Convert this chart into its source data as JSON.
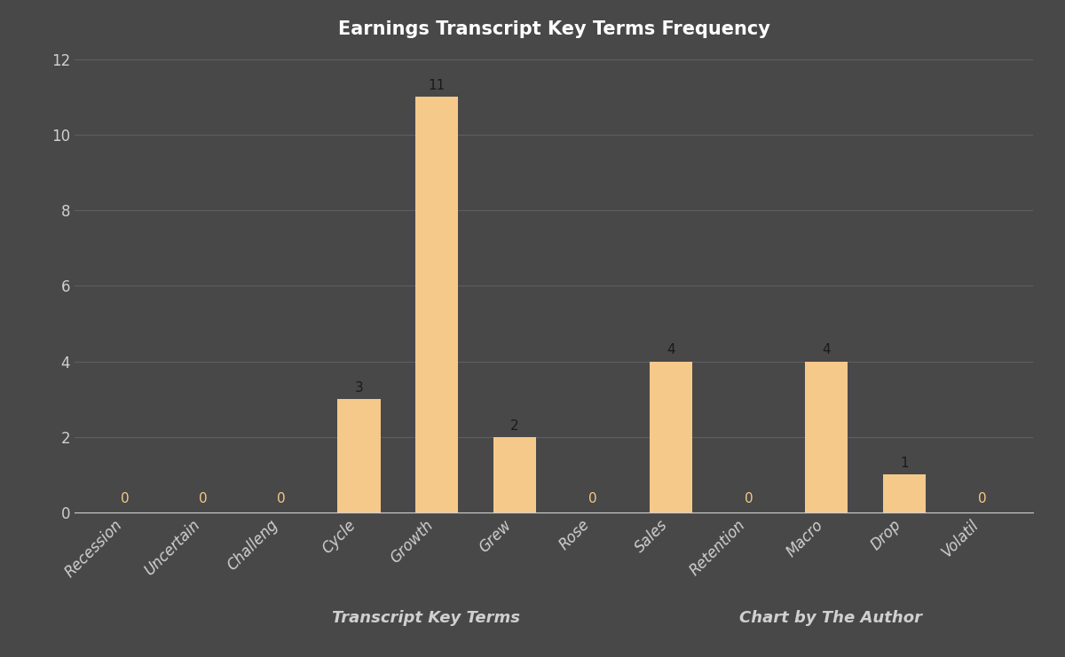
{
  "title": "Earnings Transcript Key Terms Frequency",
  "categories": [
    "Recession",
    "Uncertain",
    "Challeng",
    "Cycle",
    "Growth",
    "Grew",
    "Rose",
    "Sales",
    "Retention",
    "Macro",
    "Drop",
    "Volatil"
  ],
  "values": [
    0,
    0,
    0,
    3,
    11,
    2,
    0,
    4,
    0,
    4,
    1,
    0
  ],
  "bar_color": "#f5c98a",
  "label_color_zero": "#f5c98a",
  "label_color_nonzero": "#1a1a1a",
  "background_color": "#484848",
  "text_color": "#d0d0d0",
  "title_color": "#ffffff",
  "grid_color": "#5e5e5e",
  "xlabel": "Transcript Key Terms",
  "xlabel2": "Chart by The Author",
  "ylim": [
    0,
    12
  ],
  "yticks": [
    0,
    2,
    4,
    6,
    8,
    10,
    12
  ],
  "title_fontsize": 15,
  "label_fontsize": 13,
  "tick_fontsize": 12,
  "bar_label_fontsize": 11,
  "bar_width": 0.55
}
